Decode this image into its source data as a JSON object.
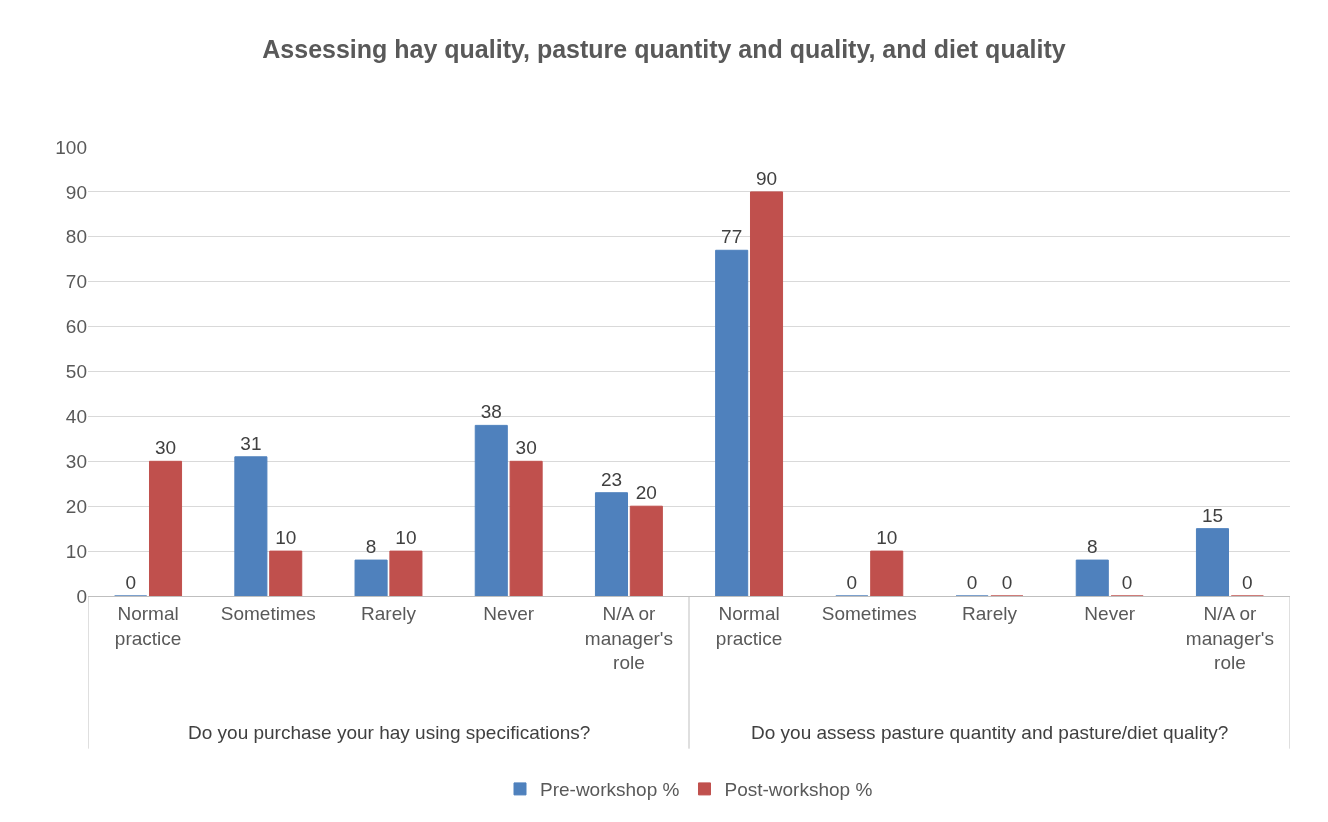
{
  "chart_data": {
    "type": "bar",
    "title": "Assessing hay quality, pasture quantity and quality, and diet quality",
    "categories": [
      "Normal practice",
      "Sometimes",
      "Rarely",
      "Never",
      "N/A or manager's role",
      "Normal practice",
      "Sometimes",
      "Rarely",
      "Never",
      "N/A or manager's role"
    ],
    "series": [
      {
        "name": "Pre-workshop %",
        "color": "#4f81bd",
        "values": [
          0,
          31,
          8,
          38,
          23,
          77,
          0,
          0,
          8,
          15
        ]
      },
      {
        "name": "Post-workshop %",
        "color": "#c0504d",
        "values": [
          30,
          10,
          10,
          30,
          20,
          90,
          10,
          0,
          0,
          0
        ]
      }
    ],
    "annotations": [
      "Do you purchase your hay using specifications?",
      "Do you assess pasture quantity and pasture/diet quality?"
    ],
    "ylim": [
      0,
      100
    ],
    "yticks": [
      0,
      10,
      20,
      30,
      40,
      50,
      60,
      70,
      80,
      90,
      100
    ],
    "grid": "y",
    "legend": "bottom",
    "data_labels": true
  }
}
